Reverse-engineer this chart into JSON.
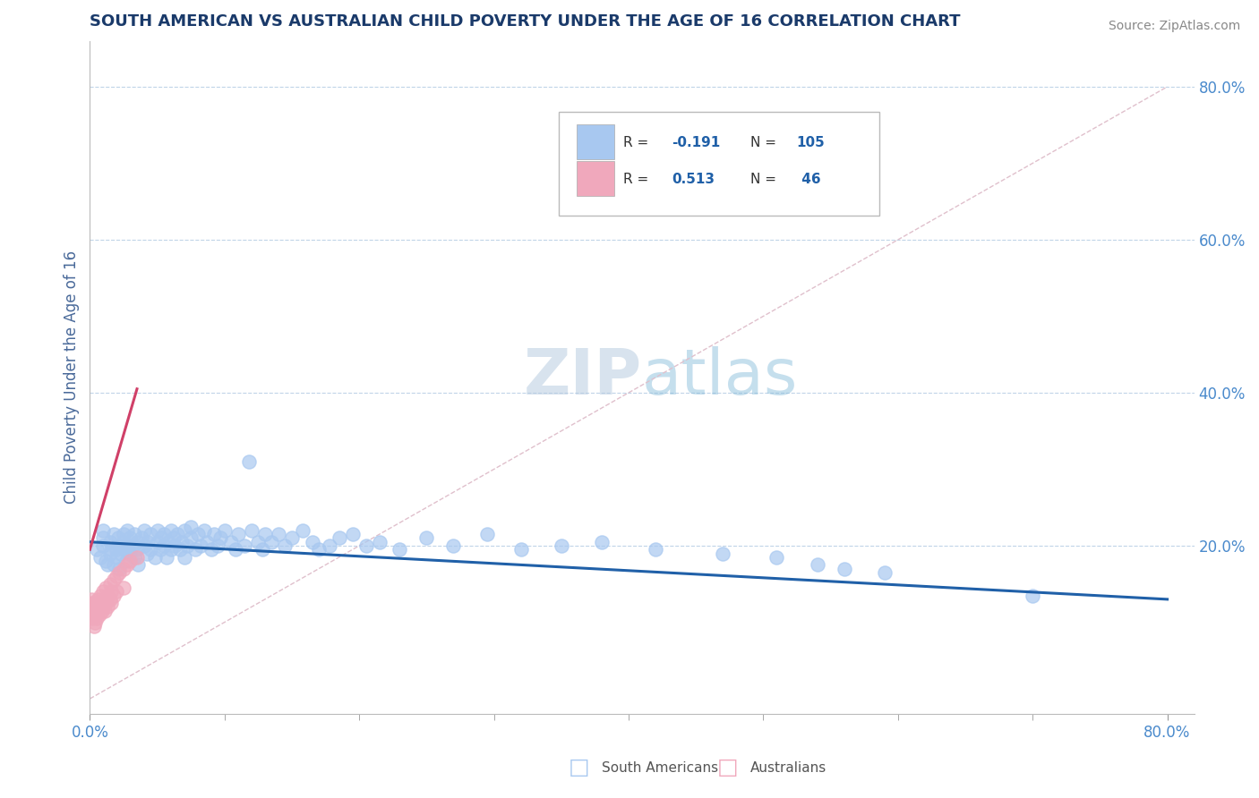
{
  "title": "SOUTH AMERICAN VS AUSTRALIAN CHILD POVERTY UNDER THE AGE OF 16 CORRELATION CHART",
  "source": "Source: ZipAtlas.com",
  "ylabel": "Child Poverty Under the Age of 16",
  "xlim": [
    0.0,
    0.82
  ],
  "ylim": [
    -0.02,
    0.86
  ],
  "xtick_major": [
    0.0,
    0.8
  ],
  "xticklabels": [
    "0.0%",
    "80.0%"
  ],
  "yticks": [
    0.2,
    0.4,
    0.6,
    0.8
  ],
  "yticklabels": [
    "20.0%",
    "40.0%",
    "60.0%",
    "80.0%"
  ],
  "blue_color": "#a8c8f0",
  "pink_color": "#f0a8bc",
  "blue_line_color": "#2060a8",
  "pink_line_color": "#d04068",
  "title_color": "#1a3a6a",
  "axis_label_color": "#4a6a9a",
  "tick_color": "#4a8acc",
  "grid_color": "#c0d4e8",
  "diag_color": "#e0c0cc",
  "background_color": "#ffffff",
  "watermark_color": "#d8eaf8",
  "sa_x": [
    0.005,
    0.008,
    0.01,
    0.01,
    0.01,
    0.012,
    0.013,
    0.015,
    0.015,
    0.016,
    0.018,
    0.018,
    0.02,
    0.02,
    0.021,
    0.022,
    0.022,
    0.023,
    0.025,
    0.025,
    0.026,
    0.027,
    0.028,
    0.028,
    0.03,
    0.03,
    0.032,
    0.033,
    0.033,
    0.035,
    0.035,
    0.036,
    0.038,
    0.04,
    0.04,
    0.042,
    0.043,
    0.045,
    0.045,
    0.048,
    0.05,
    0.05,
    0.052,
    0.053,
    0.055,
    0.055,
    0.057,
    0.058,
    0.06,
    0.06,
    0.062,
    0.063,
    0.065,
    0.067,
    0.068,
    0.07,
    0.07,
    0.072,
    0.075,
    0.075,
    0.078,
    0.08,
    0.082,
    0.085,
    0.087,
    0.09,
    0.092,
    0.095,
    0.097,
    0.1,
    0.105,
    0.108,
    0.11,
    0.115,
    0.118,
    0.12,
    0.125,
    0.128,
    0.13,
    0.135,
    0.14,
    0.145,
    0.15,
    0.158,
    0.165,
    0.17,
    0.178,
    0.185,
    0.195,
    0.205,
    0.215,
    0.23,
    0.25,
    0.27,
    0.295,
    0.32,
    0.35,
    0.38,
    0.42,
    0.47,
    0.51,
    0.54,
    0.56,
    0.59,
    0.7
  ],
  "sa_y": [
    0.195,
    0.185,
    0.21,
    0.22,
    0.2,
    0.18,
    0.175,
    0.19,
    0.205,
    0.195,
    0.175,
    0.215,
    0.195,
    0.185,
    0.21,
    0.2,
    0.17,
    0.19,
    0.205,
    0.215,
    0.195,
    0.18,
    0.2,
    0.22,
    0.19,
    0.21,
    0.2,
    0.185,
    0.215,
    0.195,
    0.205,
    0.175,
    0.21,
    0.2,
    0.22,
    0.19,
    0.205,
    0.195,
    0.215,
    0.185,
    0.205,
    0.22,
    0.195,
    0.21,
    0.2,
    0.215,
    0.185,
    0.205,
    0.195,
    0.22,
    0.21,
    0.2,
    0.215,
    0.195,
    0.205,
    0.185,
    0.22,
    0.2,
    0.21,
    0.225,
    0.195,
    0.215,
    0.2,
    0.22,
    0.205,
    0.195,
    0.215,
    0.2,
    0.21,
    0.22,
    0.205,
    0.195,
    0.215,
    0.2,
    0.31,
    0.22,
    0.205,
    0.195,
    0.215,
    0.205,
    0.215,
    0.2,
    0.21,
    0.22,
    0.205,
    0.195,
    0.2,
    0.21,
    0.215,
    0.2,
    0.205,
    0.195,
    0.21,
    0.2,
    0.215,
    0.195,
    0.2,
    0.205,
    0.195,
    0.19,
    0.185,
    0.175,
    0.17,
    0.165,
    0.135
  ],
  "au_x": [
    0.0,
    0.001,
    0.001,
    0.001,
    0.002,
    0.002,
    0.002,
    0.003,
    0.003,
    0.003,
    0.004,
    0.004,
    0.004,
    0.005,
    0.005,
    0.005,
    0.006,
    0.006,
    0.007,
    0.007,
    0.008,
    0.008,
    0.009,
    0.009,
    0.01,
    0.01,
    0.011,
    0.011,
    0.012,
    0.012,
    0.013,
    0.013,
    0.015,
    0.015,
    0.016,
    0.016,
    0.018,
    0.018,
    0.02,
    0.02,
    0.022,
    0.025,
    0.025,
    0.028,
    0.03,
    0.035
  ],
  "au_y": [
    0.12,
    0.125,
    0.115,
    0.13,
    0.12,
    0.115,
    0.105,
    0.125,
    0.115,
    0.095,
    0.115,
    0.1,
    0.125,
    0.11,
    0.12,
    0.105,
    0.115,
    0.13,
    0.12,
    0.11,
    0.125,
    0.135,
    0.115,
    0.125,
    0.14,
    0.12,
    0.13,
    0.115,
    0.145,
    0.125,
    0.135,
    0.12,
    0.15,
    0.13,
    0.14,
    0.125,
    0.155,
    0.135,
    0.16,
    0.14,
    0.165,
    0.17,
    0.145,
    0.175,
    0.18,
    0.185
  ]
}
